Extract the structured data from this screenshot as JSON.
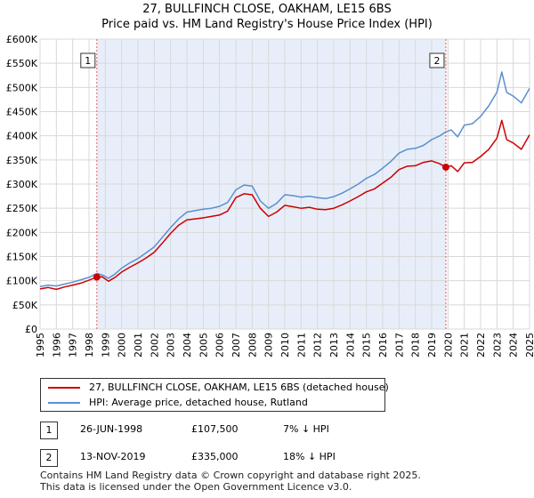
{
  "chart_data": {
    "type": "line",
    "title": "27, BULLFINCH CLOSE, OAKHAM, LE15 6BS",
    "subtitle": "Price paid vs. HM Land Registry's House Price Index (HPI)",
    "xlim": [
      1995.0,
      2025.0
    ],
    "ylim": [
      0,
      600000
    ],
    "x_tick_labels": [
      "1995",
      "1996",
      "1997",
      "1998",
      "1999",
      "2000",
      "2001",
      "2002",
      "2003",
      "2004",
      "2005",
      "2006",
      "2007",
      "2008",
      "2009",
      "2010",
      "2011",
      "2012",
      "2013",
      "2014",
      "2015",
      "2016",
      "2017",
      "2018",
      "2019",
      "2020",
      "2021",
      "2022",
      "2023",
      "2024",
      "2025"
    ],
    "y_tick_labels": [
      "£0",
      "£50K",
      "£100K",
      "£150K",
      "£200K",
      "£250K",
      "£300K",
      "£350K",
      "£400K",
      "£450K",
      "£500K",
      "£550K",
      "£600K"
    ],
    "shaded_period": [
      1998.48,
      2019.87
    ],
    "colors": {
      "property": "#cc0000",
      "hpi": "#5b8fd0",
      "shade": "#e8eef9",
      "grid": "#d8d8d8",
      "vline": "#e06060"
    },
    "series": [
      {
        "name": "27, BULLFINCH CLOSE, OAKHAM, LE15 6BS (detached house)",
        "color": "#cc0000",
        "x": [
          1995.0,
          1995.5,
          1996.0,
          1996.5,
          1997.0,
          1997.5,
          1998.0,
          1998.48,
          1998.8,
          1999.2,
          1999.6,
          2000.0,
          2000.5,
          2001.0,
          2001.5,
          2002.0,
          2002.5,
          2003.0,
          2003.5,
          2004.0,
          2004.5,
          2005.0,
          2005.5,
          2006.0,
          2006.5,
          2007.0,
          2007.5,
          2008.0,
          2008.5,
          2009.0,
          2009.5,
          2010.0,
          2010.5,
          2011.0,
          2011.5,
          2012.0,
          2012.5,
          2013.0,
          2013.5,
          2014.0,
          2014.5,
          2015.0,
          2015.5,
          2016.0,
          2016.5,
          2017.0,
          2017.5,
          2018.0,
          2018.5,
          2019.0,
          2019.5,
          2019.87,
          2020.2,
          2020.6,
          2021.0,
          2021.5,
          2022.0,
          2022.5,
          2023.0,
          2023.3,
          2023.6,
          2024.0,
          2024.5,
          2025.0
        ],
        "y": [
          83000,
          86000,
          82000,
          87000,
          91000,
          95000,
          101000,
          107500,
          108000,
          99000,
          107000,
          118000,
          128000,
          137000,
          147000,
          159000,
          178000,
          198000,
          215000,
          226000,
          228000,
          230000,
          233000,
          236000,
          244000,
          272000,
          280000,
          278000,
          250000,
          233000,
          242000,
          256000,
          253000,
          250000,
          252000,
          248000,
          247000,
          250000,
          257000,
          265000,
          274000,
          284000,
          290000,
          302000,
          314000,
          330000,
          337000,
          338000,
          345000,
          348000,
          342000,
          335000,
          338000,
          326000,
          344000,
          345000,
          357000,
          372000,
          395000,
          432000,
          392000,
          385000,
          372000,
          402000
        ]
      },
      {
        "name": "HPI: Average price, detached house, Rutland",
        "color": "#5b8fd0",
        "x": [
          1995.0,
          1995.5,
          1996.0,
          1996.5,
          1997.0,
          1997.5,
          1998.0,
          1998.48,
          1998.8,
          1999.2,
          1999.6,
          2000.0,
          2000.5,
          2001.0,
          2001.5,
          2002.0,
          2002.5,
          2003.0,
          2003.5,
          2004.0,
          2004.5,
          2005.0,
          2005.5,
          2006.0,
          2006.5,
          2007.0,
          2007.5,
          2008.0,
          2008.5,
          2009.0,
          2009.5,
          2010.0,
          2010.5,
          2011.0,
          2011.5,
          2012.0,
          2012.5,
          2013.0,
          2013.5,
          2014.0,
          2014.5,
          2015.0,
          2015.5,
          2016.0,
          2016.5,
          2017.0,
          2017.5,
          2018.0,
          2018.5,
          2019.0,
          2019.5,
          2019.87,
          2020.2,
          2020.6,
          2021.0,
          2021.5,
          2022.0,
          2022.5,
          2023.0,
          2023.3,
          2023.6,
          2024.0,
          2024.5,
          2025.0
        ],
        "y": [
          88000,
          91000,
          89000,
          93000,
          97000,
          102000,
          107000,
          115000,
          112000,
          105000,
          114000,
          126000,
          137000,
          146000,
          158000,
          170000,
          190000,
          210000,
          228000,
          242000,
          245000,
          248000,
          250000,
          254000,
          262000,
          288000,
          298000,
          296000,
          265000,
          250000,
          260000,
          278000,
          276000,
          273000,
          275000,
          272000,
          270000,
          274000,
          281000,
          290000,
          300000,
          312000,
          320000,
          333000,
          347000,
          364000,
          372000,
          374000,
          380000,
          392000,
          400000,
          408000,
          412000,
          398000,
          422000,
          425000,
          440000,
          462000,
          490000,
          532000,
          490000,
          482000,
          468000,
          498000
        ]
      }
    ],
    "sales": [
      {
        "label": "1",
        "x": 1998.48,
        "value": 107500
      },
      {
        "label": "2",
        "x": 2019.87,
        "value": 335000
      }
    ]
  },
  "legend": {
    "property_label": "27, BULLFINCH CLOSE, OAKHAM, LE15 6BS (detached house)",
    "hpi_label": "HPI: Average price, detached house, Rutland"
  },
  "sales_table": [
    {
      "num": "1",
      "date": "26-JUN-1998",
      "price": "£107,500",
      "hpi": "7% ↓ HPI"
    },
    {
      "num": "2",
      "date": "13-NOV-2019",
      "price": "£335,000",
      "hpi": "18% ↓ HPI"
    }
  ],
  "footer": {
    "line1": "Contains HM Land Registry data © Crown copyright and database right 2025.",
    "line2": "This data is licensed under the Open Government Licence v3.0."
  }
}
